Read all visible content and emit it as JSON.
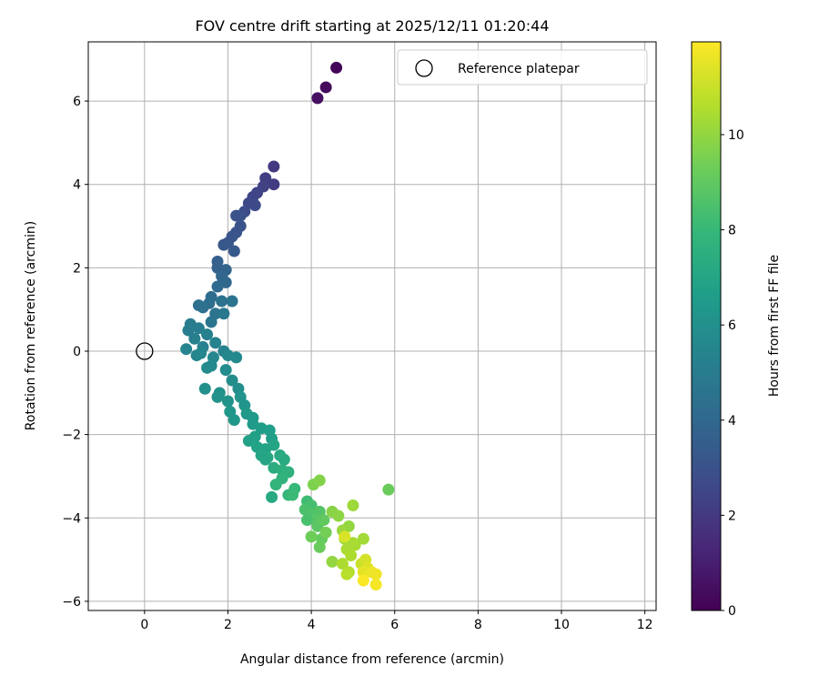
{
  "chart_data": {
    "type": "scatter",
    "title": "FOV centre drift starting at 2025/12/11 01:20:44",
    "xlabel": "Angular distance from reference (arcmin)",
    "ylabel": "Rotation from reference (arcmin)",
    "xlim": [
      -1.35,
      12.27
    ],
    "ylim": [
      -6.22,
      7.42
    ],
    "xticks": [
      0,
      2,
      4,
      6,
      8,
      10,
      12
    ],
    "yticks": [
      -6,
      -4,
      -2,
      0,
      2,
      4,
      6
    ],
    "xtick_labels": [
      "0",
      "2",
      "4",
      "6",
      "8",
      "10",
      "12"
    ],
    "ytick_labels": [
      "−6",
      "−4",
      "−2",
      "0",
      "2",
      "4",
      "6"
    ],
    "grid": true,
    "legend": {
      "placement": "top-right",
      "entries": [
        "Reference platepar"
      ]
    },
    "reference_point": {
      "x": 0,
      "y": 0,
      "label": "Reference platepar"
    },
    "colorbar": {
      "label": "Hours from first FF file",
      "range": [
        0,
        11.95
      ],
      "ticks": [
        0,
        2,
        4,
        6,
        8,
        10
      ],
      "tick_labels": [
        "0",
        "2",
        "4",
        "6",
        "8",
        "10"
      ],
      "colormap": "viridis"
    },
    "points": [
      [
        4.6,
        6.8,
        0.1
      ],
      [
        4.35,
        6.33,
        0.3
      ],
      [
        4.15,
        6.07,
        0.5
      ],
      [
        3.1,
        4.43,
        2.0
      ],
      [
        3.1,
        4.0,
        2.1
      ],
      [
        2.9,
        4.15,
        2.2
      ],
      [
        2.85,
        3.95,
        2.3
      ],
      [
        2.7,
        3.8,
        2.4
      ],
      [
        2.6,
        3.7,
        2.5
      ],
      [
        2.5,
        3.55,
        2.6
      ],
      [
        2.65,
        3.5,
        2.7
      ],
      [
        2.4,
        3.35,
        2.8
      ],
      [
        2.3,
        3.25,
        2.9
      ],
      [
        2.2,
        3.25,
        3.0
      ],
      [
        2.3,
        3.0,
        3.05
      ],
      [
        2.2,
        2.85,
        3.1
      ],
      [
        2.1,
        2.75,
        3.15
      ],
      [
        2.0,
        2.6,
        3.2
      ],
      [
        1.9,
        2.55,
        3.25
      ],
      [
        2.15,
        2.4,
        3.3
      ],
      [
        1.75,
        2.15,
        3.6
      ],
      [
        1.75,
        2.0,
        3.7
      ],
      [
        1.95,
        1.95,
        3.8
      ],
      [
        1.85,
        1.8,
        3.9
      ],
      [
        1.95,
        1.65,
        4.0
      ],
      [
        1.75,
        1.55,
        4.1
      ],
      [
        1.6,
        1.3,
        4.2
      ],
      [
        1.55,
        1.15,
        4.3
      ],
      [
        1.3,
        1.1,
        4.4
      ],
      [
        1.4,
        1.05,
        4.45
      ],
      [
        1.85,
        1.2,
        4.5
      ],
      [
        2.1,
        1.2,
        4.55
      ],
      [
        1.7,
        0.9,
        4.6
      ],
      [
        1.6,
        0.7,
        4.7
      ],
      [
        1.9,
        0.9,
        4.8
      ],
      [
        1.1,
        0.65,
        5.0
      ],
      [
        1.3,
        0.55,
        5.05
      ],
      [
        1.05,
        0.5,
        5.1
      ],
      [
        1.2,
        0.3,
        5.15
      ],
      [
        1.5,
        0.4,
        5.2
      ],
      [
        1.4,
        0.1,
        5.25
      ],
      [
        1.7,
        0.2,
        5.3
      ],
      [
        1.9,
        0.0,
        5.35
      ],
      [
        1.0,
        0.05,
        5.4
      ],
      [
        1.25,
        -0.1,
        5.45
      ],
      [
        1.35,
        -0.05,
        5.5
      ],
      [
        1.65,
        -0.15,
        5.55
      ],
      [
        2.0,
        -0.1,
        5.6
      ],
      [
        2.2,
        -0.15,
        5.65
      ],
      [
        1.6,
        -0.35,
        5.7
      ],
      [
        1.5,
        -0.4,
        5.75
      ],
      [
        1.95,
        -0.45,
        5.8
      ],
      [
        2.1,
        -0.7,
        5.85
      ],
      [
        2.25,
        -0.9,
        5.9
      ],
      [
        1.45,
        -0.9,
        5.95
      ],
      [
        1.8,
        -1.0,
        6.0
      ],
      [
        1.75,
        -1.1,
        6.05
      ],
      [
        2.0,
        -1.2,
        6.1
      ],
      [
        2.3,
        -1.1,
        6.15
      ],
      [
        2.4,
        -1.3,
        6.2
      ],
      [
        2.05,
        -1.45,
        6.25
      ],
      [
        2.15,
        -1.65,
        6.3
      ],
      [
        2.45,
        -1.5,
        6.35
      ],
      [
        2.6,
        -1.6,
        6.4
      ],
      [
        2.6,
        -1.75,
        6.5
      ],
      [
        2.8,
        -1.85,
        6.6
      ],
      [
        3.0,
        -1.9,
        6.65
      ],
      [
        3.05,
        -2.1,
        6.7
      ],
      [
        2.65,
        -2.05,
        6.75
      ],
      [
        2.5,
        -2.15,
        6.8
      ],
      [
        2.7,
        -2.3,
        6.85
      ],
      [
        2.9,
        -2.35,
        6.9
      ],
      [
        3.1,
        -2.25,
        6.95
      ],
      [
        2.8,
        -2.5,
        7.0
      ],
      [
        2.95,
        -2.55,
        7.1
      ],
      [
        3.25,
        -2.5,
        7.2
      ],
      [
        3.35,
        -2.6,
        7.3
      ],
      [
        3.1,
        -2.8,
        7.4
      ],
      [
        3.3,
        -2.85,
        7.5
      ],
      [
        3.45,
        -2.9,
        7.6
      ],
      [
        3.3,
        -3.05,
        7.7
      ],
      [
        2.9,
        -2.6,
        7.0
      ],
      [
        3.15,
        -3.2,
        7.8
      ],
      [
        3.05,
        -3.5,
        7.2
      ],
      [
        3.45,
        -3.45,
        7.9
      ],
      [
        3.6,
        -3.3,
        8.0
      ],
      [
        3.55,
        -3.45,
        8.1
      ],
      [
        3.9,
        -3.6,
        8.2
      ],
      [
        3.95,
        -3.75,
        8.3
      ],
      [
        4.0,
        -3.7,
        8.4
      ],
      [
        3.85,
        -3.8,
        8.5
      ],
      [
        4.05,
        -3.9,
        8.6
      ],
      [
        4.2,
        -3.85,
        8.7
      ],
      [
        4.1,
        -4.05,
        8.8
      ],
      [
        4.15,
        -4.2,
        8.9
      ],
      [
        4.3,
        -4.05,
        9.0
      ],
      [
        4.25,
        -4.5,
        9.1
      ],
      [
        4.2,
        -4.7,
        9.2
      ],
      [
        4.0,
        -4.45,
        9.3
      ],
      [
        4.35,
        -4.35,
        9.4
      ],
      [
        3.9,
        -4.05,
        8.5
      ],
      [
        4.05,
        -3.2,
        9.6
      ],
      [
        4.2,
        -3.1,
        9.7
      ],
      [
        4.5,
        -3.85,
        9.8
      ],
      [
        4.65,
        -3.95,
        9.9
      ],
      [
        4.9,
        -4.2,
        10.0
      ],
      [
        4.75,
        -4.3,
        10.1
      ],
      [
        4.8,
        -4.5,
        10.2
      ],
      [
        5.0,
        -4.6,
        10.3
      ],
      [
        4.85,
        -4.75,
        10.4
      ],
      [
        4.95,
        -4.9,
        10.5
      ],
      [
        5.05,
        -4.65,
        10.4
      ],
      [
        5.25,
        -4.5,
        10.3
      ],
      [
        5.85,
        -3.32,
        9.2
      ],
      [
        5.0,
        -3.7,
        10.2
      ],
      [
        4.5,
        -5.05,
        10.0
      ],
      [
        4.75,
        -5.1,
        10.5
      ],
      [
        4.9,
        -5.3,
        10.6
      ],
      [
        4.85,
        -5.35,
        10.7
      ],
      [
        5.2,
        -5.1,
        11.0
      ],
      [
        5.3,
        -5.0,
        11.2
      ],
      [
        5.35,
        -5.2,
        11.4
      ],
      [
        5.25,
        -5.3,
        11.5
      ],
      [
        5.45,
        -5.3,
        11.6
      ],
      [
        5.55,
        -5.35,
        11.7
      ],
      [
        5.55,
        -5.6,
        11.8
      ],
      [
        5.25,
        -5.5,
        11.9
      ],
      [
        4.8,
        -4.45,
        11.3
      ]
    ]
  }
}
